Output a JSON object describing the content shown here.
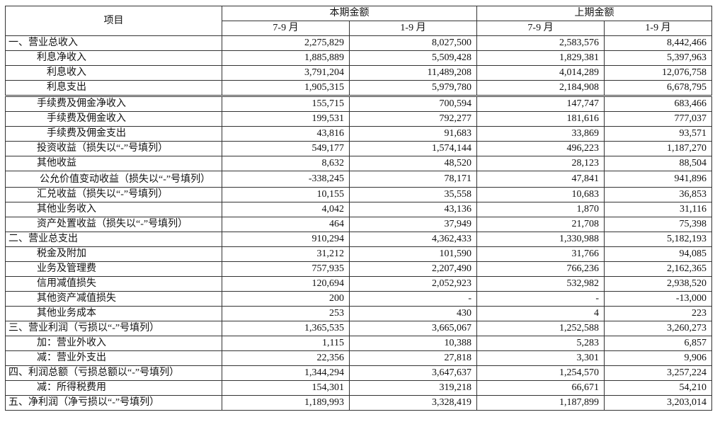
{
  "header": {
    "item": "项目",
    "current_period": "本期金额",
    "prior_period": "上期金额",
    "q3": "7-9 月",
    "ytd": "1-9 月"
  },
  "rows": [
    {
      "label": "一、营业总收入",
      "indent": 0,
      "values": [
        "2,275,829",
        "8,027,500",
        "2,583,576",
        "8,442,466"
      ]
    },
    {
      "label": "利息净收入",
      "indent": 1,
      "values": [
        "1,885,889",
        "5,509,428",
        "1,829,381",
        "5,397,963"
      ]
    },
    {
      "label": "利息收入",
      "indent": 2,
      "values": [
        "3,791,204",
        "11,489,208",
        "4,014,289",
        "12,076,758"
      ]
    },
    {
      "label": "利息支出",
      "indent": 2,
      "values": [
        "1,905,315",
        "5,979,780",
        "2,184,908",
        "6,678,795"
      ]
    },
    {
      "label": "手续费及佣金净收入",
      "indent": 1,
      "values": [
        "155,715",
        "700,594",
        "147,747",
        "683,466"
      ]
    },
    {
      "label": "手续费及佣金收入",
      "indent": 2,
      "values": [
        "199,531",
        "792,277",
        "181,616",
        "777,037"
      ]
    },
    {
      "label": "手续费及佣金支出",
      "indent": 2,
      "values": [
        "43,816",
        "91,683",
        "33,869",
        "93,571"
      ]
    },
    {
      "label": "投资收益（损失以“-”号填列）",
      "indent": 1,
      "values": [
        "549,177",
        "1,574,144",
        "496,223",
        "1,187,270"
      ]
    },
    {
      "label": "其他收益",
      "indent": 1,
      "values": [
        "8,632",
        "48,520",
        "28,123",
        "88,504"
      ]
    },
    {
      "label": "公允价值变动收益（损失以“-”号填列）",
      "indent": 1,
      "wrap": true,
      "values": [
        "-338,245",
        "78,171",
        "47,841",
        "941,896"
      ]
    },
    {
      "label": "汇兑收益（损失以“-”号填列）",
      "indent": 1,
      "values": [
        "10,155",
        "35,558",
        "10,683",
        "36,853"
      ]
    },
    {
      "label": "其他业务收入",
      "indent": 1,
      "values": [
        "4,042",
        "43,136",
        "1,870",
        "31,116"
      ]
    },
    {
      "label": "资产处置收益（损失以“-”号填列）",
      "indent": 1,
      "values": [
        "464",
        "37,949",
        "21,708",
        "75,398"
      ]
    },
    {
      "label": "二、营业总支出",
      "indent": 0,
      "values": [
        "910,294",
        "4,362,433",
        "1,330,988",
        "5,182,193"
      ]
    },
    {
      "label": "税金及附加",
      "indent": 1,
      "values": [
        "31,212",
        "101,590",
        "31,766",
        "94,085"
      ]
    },
    {
      "label": "业务及管理费",
      "indent": 1,
      "values": [
        "757,935",
        "2,207,490",
        "766,236",
        "2,162,365"
      ]
    },
    {
      "label": "信用减值损失",
      "indent": 1,
      "values": [
        "120,694",
        "2,052,923",
        "532,982",
        "2,938,520"
      ]
    },
    {
      "label": "其他资产减值损失",
      "indent": 1,
      "values": [
        "200",
        "-",
        "-",
        "-13,000"
      ]
    },
    {
      "label": "其他业务成本",
      "indent": 1,
      "values": [
        "253",
        "430",
        "4",
        "223"
      ]
    },
    {
      "label": "三、营业利润（亏损以“-”号填列）",
      "indent": 0,
      "values": [
        "1,365,535",
        "3,665,067",
        "1,252,588",
        "3,260,273"
      ]
    },
    {
      "label": "加：营业外收入",
      "indent": 1,
      "values": [
        "1,115",
        "10,388",
        "5,283",
        "6,857"
      ]
    },
    {
      "label": "减：营业外支出",
      "indent": 1,
      "values": [
        "22,356",
        "27,818",
        "3,301",
        "9,906"
      ]
    },
    {
      "label": "四、利润总额（亏损总额以“-”号填列）",
      "indent": 0,
      "values": [
        "1,344,294",
        "3,647,637",
        "1,254,570",
        "3,257,224"
      ]
    },
    {
      "label": "减：所得税费用",
      "indent": 1,
      "values": [
        "154,301",
        "319,218",
        "66,671",
        "54,210"
      ]
    },
    {
      "label": "五、净利润（净亏损以“-”号填列）",
      "indent": 0,
      "values": [
        "1,189,993",
        "3,328,419",
        "1,187,899",
        "3,203,014"
      ]
    }
  ]
}
